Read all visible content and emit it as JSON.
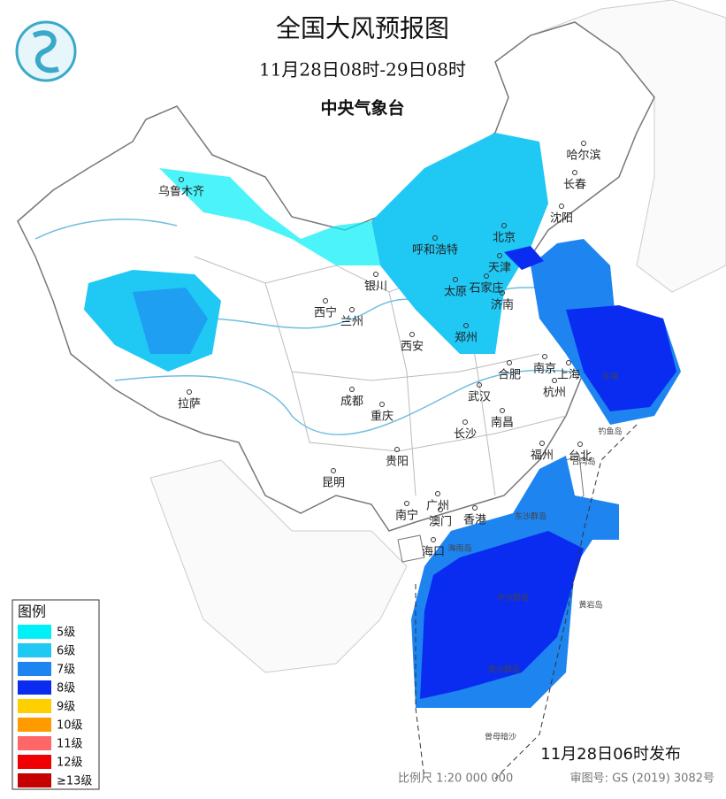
{
  "header": {
    "title": "全国大风预报图",
    "subtitle": "11月28日08时-29日08时",
    "publisher": "中央气象台"
  },
  "legend": {
    "title": "图例",
    "items": [
      {
        "label": "5级",
        "color": "#00f0f8"
      },
      {
        "label": "6级",
        "color": "#20c8f4"
      },
      {
        "label": "7级",
        "color": "#1e84f0"
      },
      {
        "label": "8级",
        "color": "#0a2cf0"
      },
      {
        "label": "9级",
        "color": "#ffd000"
      },
      {
        "label": "10级",
        "color": "#ff9a00"
      },
      {
        "label": "11级",
        "color": "#ff6666"
      },
      {
        "label": "12级",
        "color": "#f00000"
      },
      {
        "label": "≥13级",
        "color": "#c40000"
      }
    ]
  },
  "cities": [
    "乌鲁木齐",
    "哈尔滨",
    "长春",
    "沈阳",
    "呼和浩特",
    "北京",
    "天津",
    "银川",
    "太原",
    "石家庄",
    "济南",
    "西宁",
    "兰州",
    "郑州",
    "西安",
    "合肥",
    "南京",
    "上海",
    "杭州",
    "武汉",
    "拉萨",
    "成都",
    "重庆",
    "南昌",
    "长沙",
    "贵阳",
    "福州",
    "台北",
    "昆明",
    "南宁",
    "广州",
    "澳门",
    "香港",
    "海口"
  ],
  "places": [
    "东海",
    "台湾岛",
    "海南岛",
    "东沙群岛",
    "中沙群岛",
    "南沙群岛",
    "钓鱼岛",
    "黄岩岛",
    "曾母暗沙"
  ],
  "footer": {
    "issued": "11月28日06时发布",
    "scale": "比例尺 1:20 000 000",
    "review": "审图号: GS (2019) 3082号"
  }
}
